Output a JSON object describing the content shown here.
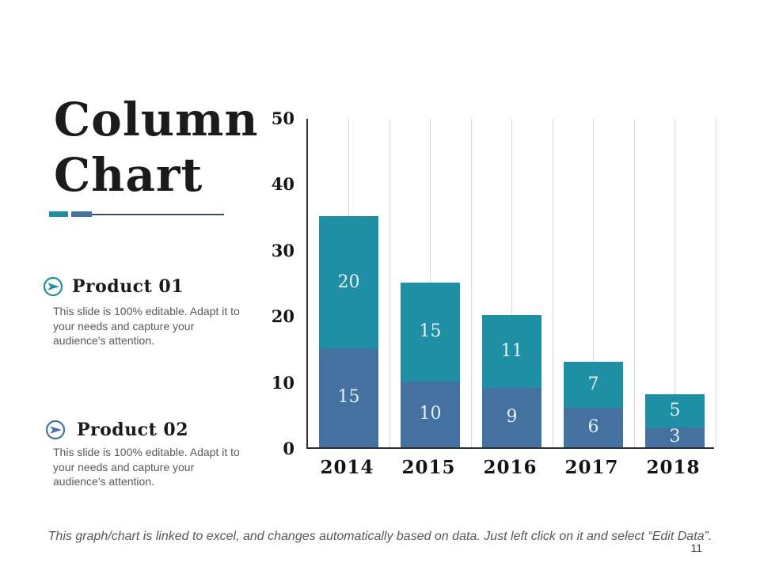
{
  "slide": {
    "title_line1": "Column",
    "title_line2": "Chart",
    "page_number": "11",
    "footer_note": "This graph/chart is linked to excel, and changes automatically based on data. Just left click on it and select “Edit Data”."
  },
  "products": [
    {
      "heading": "Product 01",
      "description": "This slide is 100% editable. Adapt it to\nyour needs and capture your\naudience's attention.",
      "icon": "circle-send-arrow-icon",
      "icon_color": "#1e8fa5"
    },
    {
      "heading": "Product 02",
      "description": "This slide is 100% editable. Adapt it to\nyour needs and capture your\naudience's attention.",
      "icon": "circle-send-arrow-icon",
      "icon_color": "#44719f"
    }
  ],
  "accent": {
    "teal": "#1e8fa5",
    "blue": "#44719f",
    "underline_line": "#404e58",
    "axis": "#2f2f2f",
    "gridline": "#d9d9d9"
  },
  "chart_data": {
    "type": "bar",
    "stacked": true,
    "title": "",
    "xlabel": "",
    "ylabel": "",
    "categories": [
      "2014",
      "2015",
      "2016",
      "2017",
      "2018"
    ],
    "series": [
      {
        "name": "Product 02",
        "color": "#44719f",
        "values": [
          15,
          10,
          9,
          6,
          3
        ]
      },
      {
        "name": "Product 01",
        "color": "#1e8fa5",
        "values": [
          20,
          15,
          11,
          7,
          5
        ]
      }
    ],
    "totals": [
      35,
      25,
      20,
      13,
      8
    ],
    "ylim": [
      0,
      50
    ],
    "yticks": [
      0,
      10,
      20,
      30,
      40,
      50
    ],
    "grid": "vertical-only",
    "legend": "none",
    "data_labels": "inside-center"
  }
}
